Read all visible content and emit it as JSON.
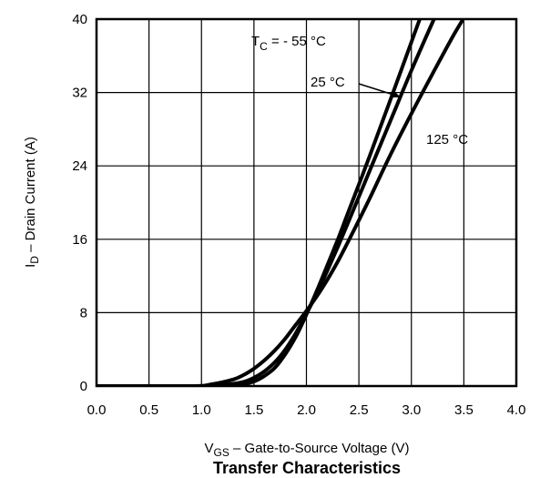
{
  "chart_data": {
    "type": "line",
    "title": "Transfer Characteristics",
    "xlabel": {
      "main": "V",
      "sub": "GS",
      "rest": " –  Gate-to-Source Voltage (V)"
    },
    "ylabel": {
      "main": "I",
      "sub": "D",
      "rest": " –  Drain Current (A)"
    },
    "xlim": [
      0.0,
      4.0
    ],
    "ylim": [
      0,
      40
    ],
    "xticks": [
      "0.0",
      "0.5",
      "1.0",
      "1.5",
      "2.0",
      "2.5",
      "3.0",
      "3.5",
      "4.0"
    ],
    "yticks": [
      "0",
      "8",
      "16",
      "24",
      "32",
      "40"
    ],
    "grid": true,
    "series": [
      {
        "name": {
          "main": "T",
          "sub": "C",
          "rest": " = - 55 °C"
        },
        "x": [
          0.0,
          1.0,
          1.2,
          1.4,
          1.5,
          1.6,
          1.7,
          1.8,
          1.9,
          2.0,
          2.1,
          2.2,
          2.3,
          2.4,
          2.6,
          2.8,
          3.0,
          3.1,
          3.2
        ],
        "y": [
          0,
          0,
          0.05,
          0.2,
          0.5,
          1.1,
          2.0,
          3.5,
          5.4,
          7.8,
          10.4,
          13.2,
          16.0,
          19.0,
          25.0,
          31.2,
          37.5,
          40.6,
          43.4
        ]
      },
      {
        "name": {
          "main": "25 °C",
          "sub": "",
          "rest": ""
        },
        "x": [
          0.0,
          1.0,
          1.2,
          1.4,
          1.5,
          1.6,
          1.7,
          1.8,
          1.9,
          2.0,
          2.1,
          2.2,
          2.3,
          2.4,
          2.6,
          2.8,
          3.0,
          3.2,
          3.35
        ],
        "y": [
          0,
          0,
          0.1,
          0.45,
          0.9,
          1.6,
          2.6,
          4.0,
          5.8,
          7.9,
          10.1,
          12.6,
          15.2,
          17.9,
          23.4,
          28.9,
          34.4,
          39.6,
          43.3
        ]
      },
      {
        "name": {
          "main": "125 °C",
          "sub": "",
          "rest": ""
        },
        "x": [
          0.0,
          0.9,
          1.1,
          1.3,
          1.4,
          1.5,
          1.6,
          1.7,
          1.8,
          1.9,
          2.0,
          2.1,
          2.2,
          2.3,
          2.4,
          2.6,
          2.8,
          3.0,
          3.2,
          3.4,
          3.6
        ],
        "y": [
          0,
          0,
          0.2,
          0.7,
          1.2,
          1.9,
          2.8,
          3.9,
          5.2,
          6.7,
          8.2,
          9.8,
          11.6,
          13.6,
          15.8,
          20.4,
          25.2,
          29.7,
          34.0,
          38.2,
          42.0
        ]
      }
    ]
  }
}
